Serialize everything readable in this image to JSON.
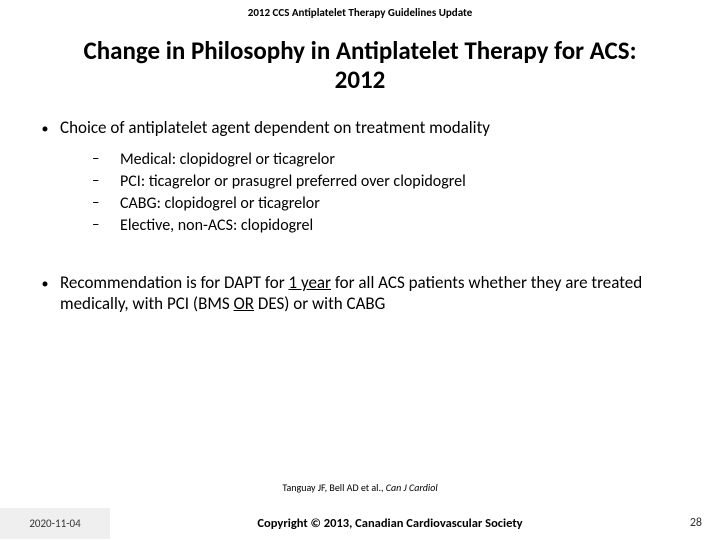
{
  "header": "2012 CCS Antiplatelet Therapy Guidelines Update",
  "title_line1": "Change in Philosophy in Antiplatelet Therapy for ACS:",
  "title_line2": "2012",
  "b1": "Choice of antiplatelet agent dependent on treatment modality",
  "s1": "Medical: clopidogrel or ticagrelor",
  "s2": "PCI: ticagrelor or prasugrel preferred over clopidogrel",
  "s3": "CABG: clopidogrel or ticagrelor",
  "s4": "Elective, non-ACS: clopidogrel",
  "b2_a": "Recommendation is for DAPT for ",
  "b2_u1": "1 year",
  "b2_b": " for all ACS patients whether they are treated medically, with PCI (BMS ",
  "b2_u2": "OR",
  "b2_c": " DES) or with CABG",
  "cite_a": "Tanguay JF, Bell AD et al., ",
  "cite_j": "Can J Cardiol",
  "date": "2020-11-04",
  "copyright": "Copyright © 2013, Canadian Cardiovascular Society",
  "page": "28",
  "colors": {
    "bg": "#ffffff",
    "text": "#000000",
    "footer_box": "#efefef"
  }
}
